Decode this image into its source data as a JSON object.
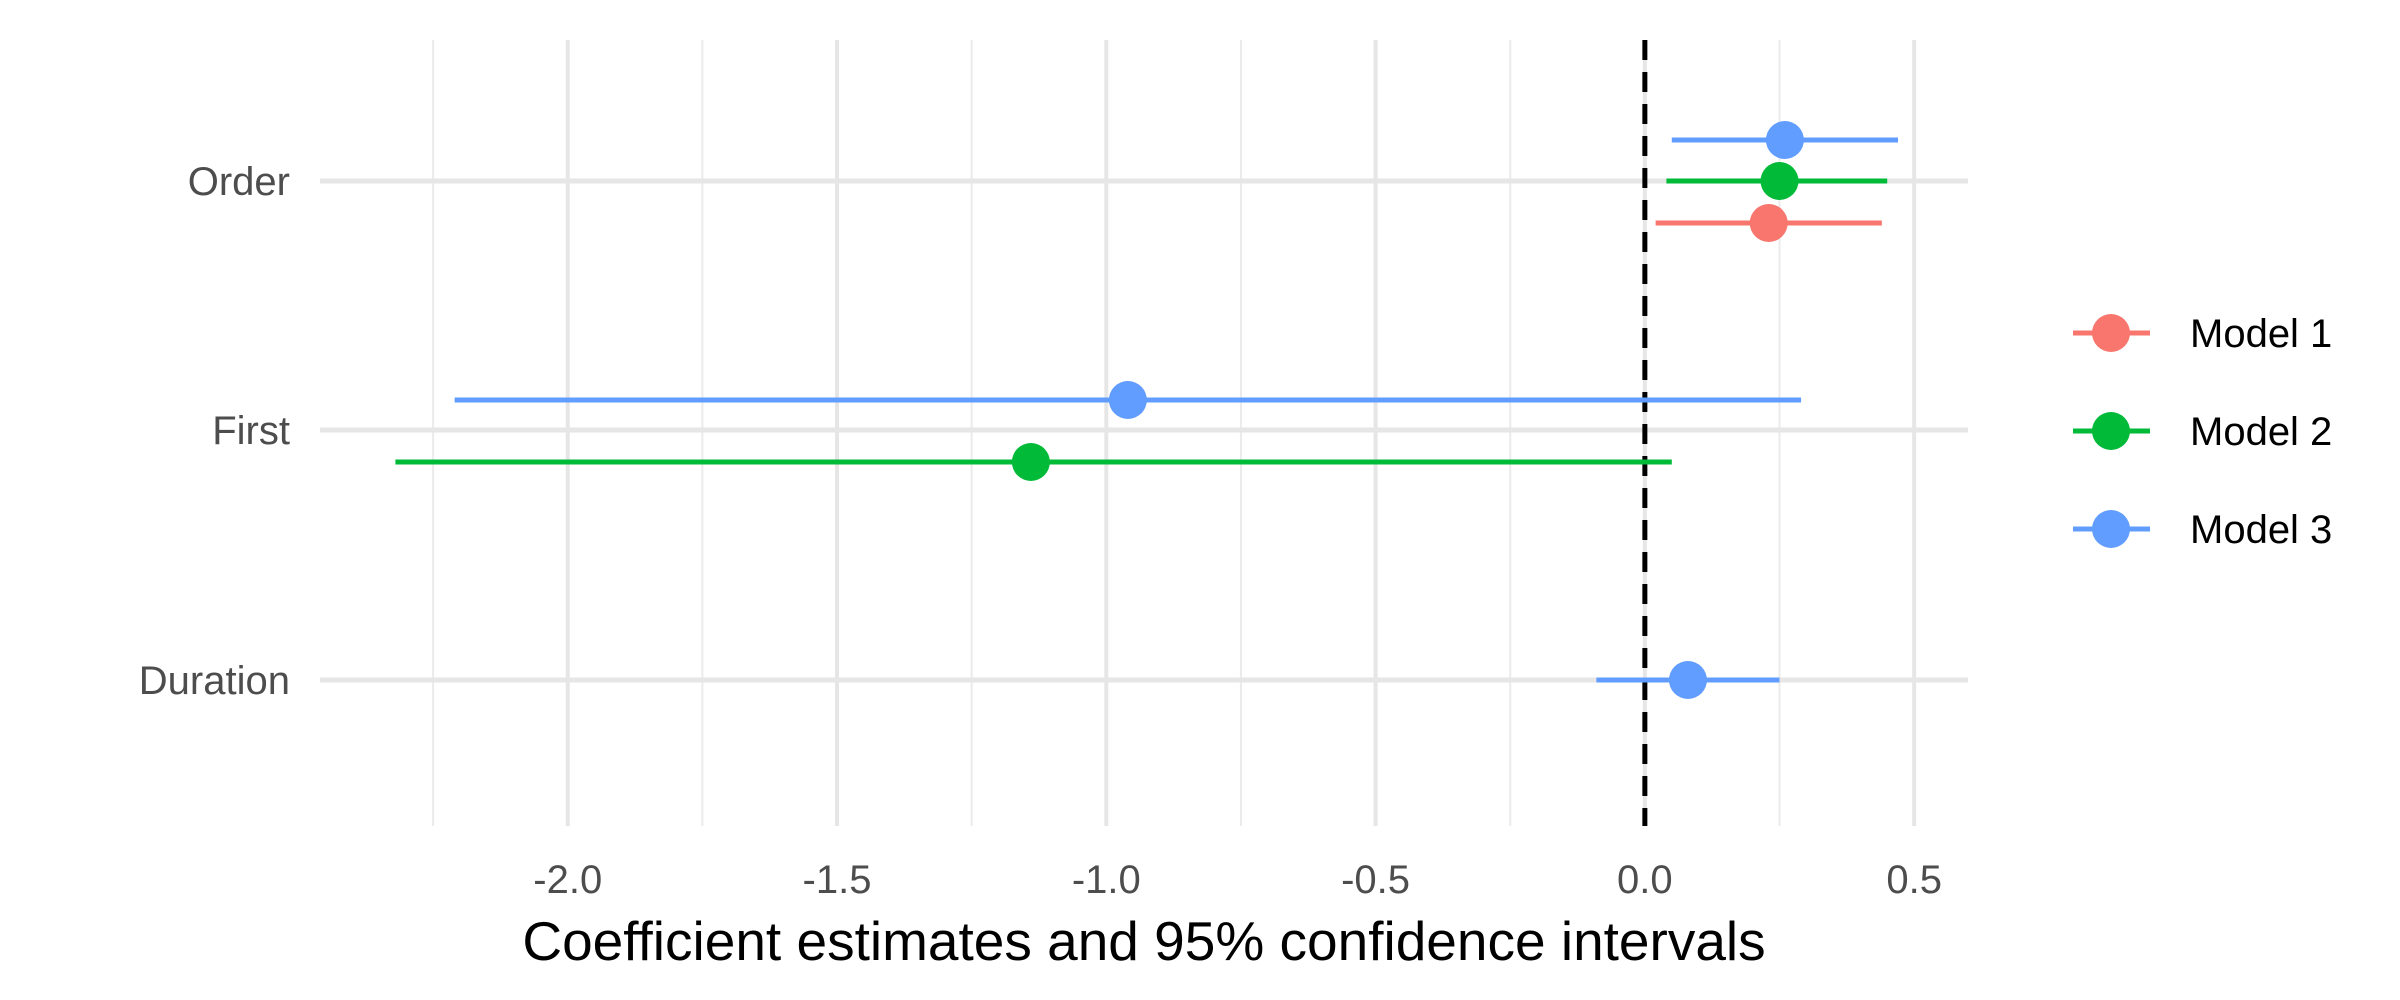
{
  "chart_data": {
    "type": "scatter",
    "subtype": "coefficient-plot",
    "title": "",
    "xlabel": "Coefficient estimates and 95% confidence intervals",
    "ylabel": "",
    "xlim": [
      -2.46,
      0.6
    ],
    "x_ticks": [
      -2.0,
      -1.5,
      -1.0,
      -0.5,
      0.0,
      0.5
    ],
    "x_tick_labels": [
      "-2.0",
      "-1.5",
      "-1.0",
      "-0.5",
      "0.0",
      "0.5"
    ],
    "x_minor_ticks": [
      -2.25,
      -1.75,
      -1.25,
      -0.75,
      -0.25,
      0.25
    ],
    "categories": [
      "Order",
      "First",
      "Duration"
    ],
    "reference_line": 0,
    "grid": true,
    "legend_position": "right",
    "series": [
      {
        "name": "Model 1",
        "color": "#F8766D",
        "points": [
          {
            "term": "Order",
            "estimate": 0.23,
            "low": 0.02,
            "high": 0.44
          }
        ]
      },
      {
        "name": "Model 2",
        "color": "#00BA38",
        "points": [
          {
            "term": "Order",
            "estimate": 0.25,
            "low": 0.04,
            "high": 0.45
          },
          {
            "term": "First",
            "estimate": -1.14,
            "low": -2.32,
            "high": 0.05
          }
        ]
      },
      {
        "name": "Model 3",
        "color": "#619CFF",
        "points": [
          {
            "term": "Order",
            "estimate": 0.26,
            "low": 0.05,
            "high": 0.47
          },
          {
            "term": "First",
            "estimate": -0.96,
            "low": -2.21,
            "high": 0.29
          },
          {
            "term": "Duration",
            "estimate": 0.08,
            "low": -0.09,
            "high": 0.25
          }
        ]
      }
    ]
  }
}
